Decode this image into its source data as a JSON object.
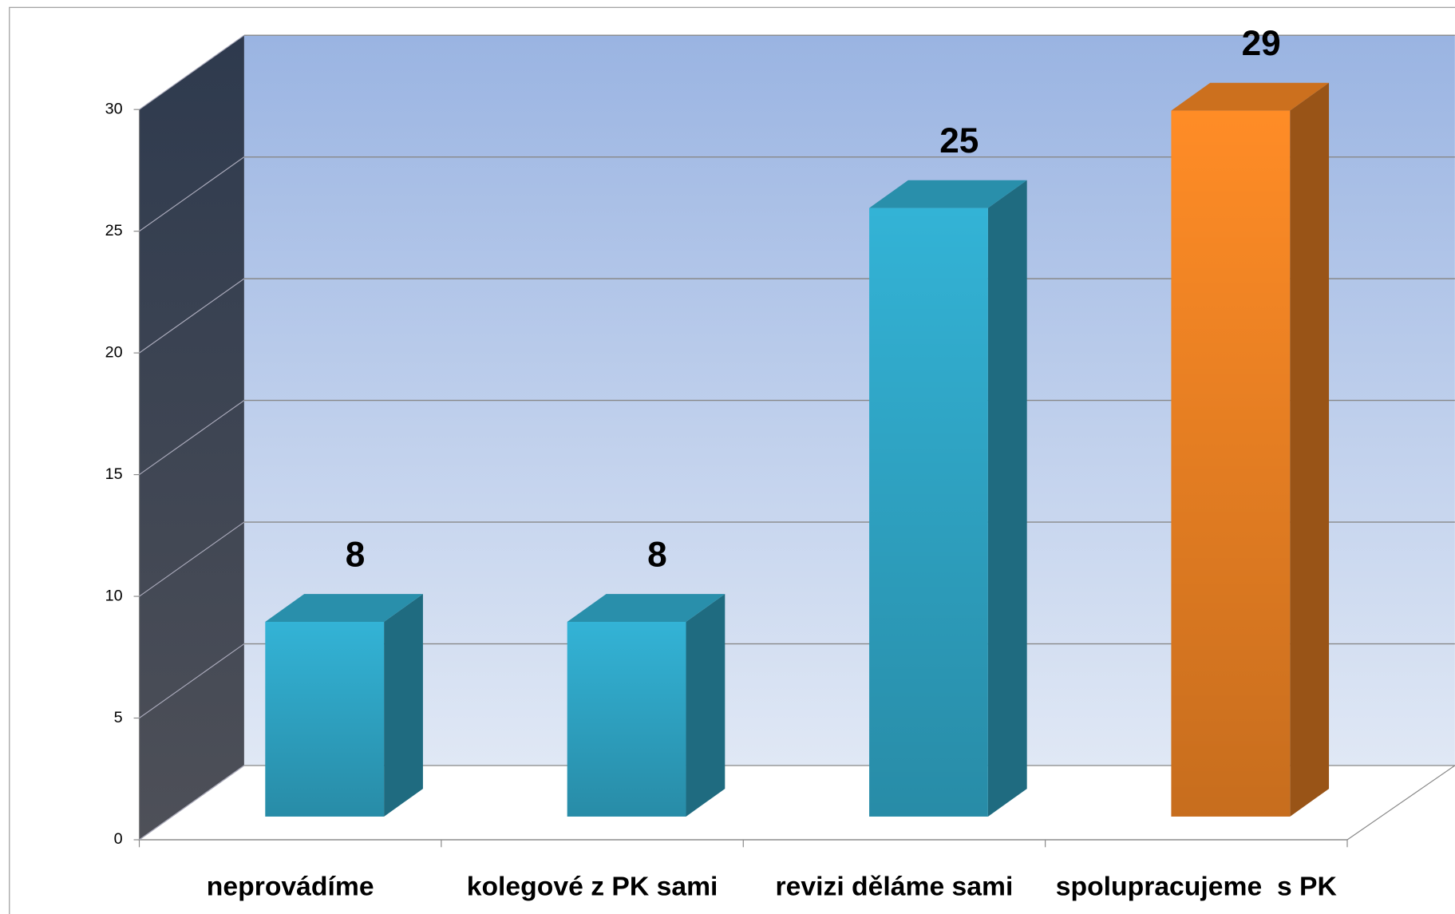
{
  "chart_data": {
    "type": "bar3d",
    "categories": [
      "neprovádíme",
      "kolegové z PK sami",
      "revizi děláme sami",
      "spolupracujeme  s PK"
    ],
    "values": [
      8,
      8,
      25,
      29
    ],
    "colors": [
      "#33b3d6",
      "#33b3d6",
      "#33b3d6",
      "#ff8c26"
    ],
    "ylim": [
      0,
      30
    ],
    "yticks": [
      0,
      5,
      10,
      15,
      20,
      25,
      30
    ],
    "grid": true
  }
}
